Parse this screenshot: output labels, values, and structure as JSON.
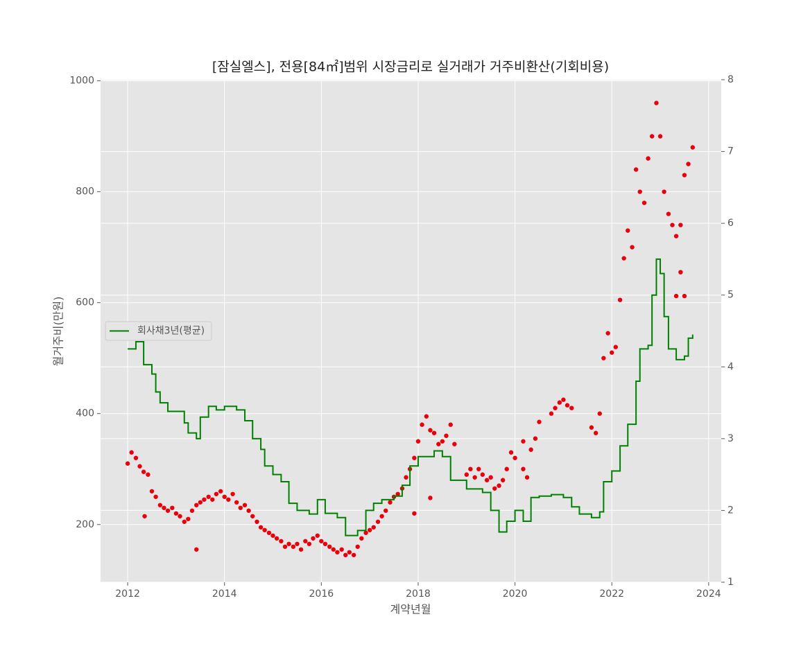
{
  "chart_data": {
    "type": "combo",
    "title": "[잠실엘스], 전용[84㎡]범위 시장금리로 실거래가 거주비환산(기회비용)",
    "xlabel": "계약년월",
    "ylabel": "월거주비(만원)",
    "xlim": [
      2011.44,
      2024.26
    ],
    "xticks": [
      2012,
      2014,
      2016,
      2018,
      2020,
      2022,
      2024
    ],
    "ylim": [
      96,
      1002
    ],
    "yticks": [
      200,
      400,
      600,
      800,
      1000
    ],
    "y2lim": [
      1,
      8
    ],
    "y2ticks": [
      1,
      2,
      3,
      4,
      5,
      6,
      7,
      8
    ],
    "grid": true,
    "legend": "center left",
    "series": [
      {
        "type": "scatter",
        "color": "#e8000b",
        "x": [
          2012.0,
          2012.08,
          2012.17,
          2012.25,
          2012.33,
          2012.42,
          2012.5,
          2012.58,
          2012.67,
          2012.75,
          2012.83,
          2012.92,
          2013.0,
          2013.08,
          2013.17,
          2013.25,
          2013.33,
          2013.42,
          2013.5,
          2013.58,
          2013.67,
          2013.75,
          2013.83,
          2013.92,
          2014.0,
          2014.08,
          2014.17,
          2014.25,
          2014.33,
          2014.42,
          2014.5,
          2014.58,
          2014.67,
          2014.75,
          2014.83,
          2014.92,
          2015.0,
          2015.08,
          2015.17,
          2015.25,
          2015.33,
          2015.42,
          2015.5,
          2015.58,
          2015.67,
          2015.75,
          2015.83,
          2015.92,
          2016.0,
          2016.08,
          2016.17,
          2016.25,
          2016.33,
          2016.42,
          2016.5,
          2016.58,
          2016.67,
          2016.75,
          2016.83,
          2016.92,
          2017.0,
          2017.08,
          2017.17,
          2017.25,
          2017.33,
          2017.42,
          2017.5,
          2017.58,
          2017.67,
          2017.75,
          2017.83,
          2017.92,
          2018.0,
          2018.08,
          2018.17,
          2018.25,
          2018.33,
          2018.42,
          2018.5,
          2018.58,
          2018.67,
          2018.75,
          2019.0,
          2019.08,
          2019.17,
          2019.25,
          2019.33,
          2019.42,
          2019.5,
          2019.58,
          2019.67,
          2019.75,
          2019.83,
          2019.92,
          2020.0,
          2020.17,
          2020.25,
          2020.33,
          2020.42,
          2020.5,
          2020.75,
          2020.83,
          2020.92,
          2021.0,
          2021.08,
          2021.17,
          2021.58,
          2021.67,
          2021.75,
          2021.83,
          2021.92,
          2022.0,
          2022.08,
          2022.17,
          2022.25,
          2022.33,
          2022.42,
          2022.5,
          2022.58,
          2022.67,
          2022.75,
          2022.83,
          2022.92,
          2023.0,
          2023.08,
          2023.17,
          2023.25,
          2023.33,
          2023.42,
          2023.5,
          2023.58,
          2023.67,
          2012.35,
          2013.42,
          2017.92,
          2018.25,
          2020.17,
          2023.33,
          2023.42,
          2023.5
        ],
        "values": [
          310,
          330,
          320,
          305,
          295,
          290,
          260,
          250,
          235,
          230,
          225,
          230,
          220,
          215,
          205,
          210,
          225,
          235,
          240,
          245,
          250,
          245,
          255,
          260,
          250,
          245,
          255,
          240,
          230,
          235,
          225,
          215,
          205,
          195,
          190,
          185,
          180,
          175,
          170,
          160,
          165,
          160,
          165,
          155,
          170,
          165,
          175,
          180,
          170,
          165,
          160,
          155,
          150,
          155,
          145,
          150,
          145,
          160,
          175,
          185,
          190,
          195,
          205,
          215,
          225,
          240,
          250,
          255,
          265,
          285,
          300,
          320,
          350,
          380,
          395,
          370,
          365,
          345,
          350,
          360,
          380,
          345,
          290,
          300,
          285,
          300,
          290,
          280,
          285,
          265,
          270,
          280,
          300,
          330,
          320,
          300,
          285,
          335,
          355,
          385,
          400,
          410,
          420,
          425,
          415,
          410,
          375,
          365,
          400,
          500,
          545,
          510,
          520,
          605,
          680,
          730,
          700,
          840,
          800,
          780,
          860,
          900,
          960,
          900,
          800,
          760,
          740,
          720,
          740,
          830,
          850,
          880,
          215,
          155,
          220,
          248,
          350,
          612,
          655,
          612
        ]
      },
      {
        "type": "step",
        "name": "회사채3년(평균)",
        "color": "#008000",
        "axis": "y2",
        "x": [
          2012.0,
          2012.17,
          2012.33,
          2012.5,
          2012.58,
          2012.67,
          2012.83,
          2013.0,
          2013.17,
          2013.25,
          2013.42,
          2013.5,
          2013.67,
          2013.83,
          2014.0,
          2014.25,
          2014.42,
          2014.58,
          2014.75,
          2014.83,
          2015.0,
          2015.17,
          2015.33,
          2015.5,
          2015.75,
          2015.92,
          2016.08,
          2016.33,
          2016.5,
          2016.75,
          2016.92,
          2017.08,
          2017.25,
          2017.5,
          2017.67,
          2017.83,
          2018.0,
          2018.33,
          2018.5,
          2018.67,
          2018.83,
          2019.0,
          2019.33,
          2019.5,
          2019.67,
          2019.83,
          2020.0,
          2020.17,
          2020.33,
          2020.5,
          2020.75,
          2021.0,
          2021.17,
          2021.33,
          2021.58,
          2021.75,
          2021.83,
          2022.0,
          2022.17,
          2022.33,
          2022.5,
          2022.58,
          2022.75,
          2022.83,
          2022.92,
          2023.0,
          2023.08,
          2023.17,
          2023.33,
          2023.5,
          2023.58,
          2023.67
        ],
        "values": [
          4.25,
          4.35,
          4.03,
          3.9,
          3.65,
          3.5,
          3.38,
          3.38,
          3.22,
          3.08,
          3.0,
          3.3,
          3.45,
          3.4,
          3.45,
          3.4,
          3.25,
          3.0,
          2.85,
          2.62,
          2.5,
          2.4,
          2.1,
          2.0,
          1.95,
          2.15,
          1.96,
          1.9,
          1.65,
          1.72,
          2.0,
          2.1,
          2.15,
          2.2,
          2.35,
          2.62,
          2.75,
          2.83,
          2.75,
          2.42,
          2.42,
          2.3,
          2.25,
          2.0,
          1.7,
          1.85,
          2.0,
          1.85,
          2.18,
          2.2,
          2.22,
          2.18,
          2.05,
          1.95,
          1.9,
          1.98,
          2.4,
          2.55,
          2.9,
          3.2,
          3.8,
          4.25,
          4.3,
          5.0,
          5.5,
          5.3,
          4.7,
          4.25,
          4.1,
          4.15,
          4.4,
          4.45
        ]
      }
    ]
  }
}
